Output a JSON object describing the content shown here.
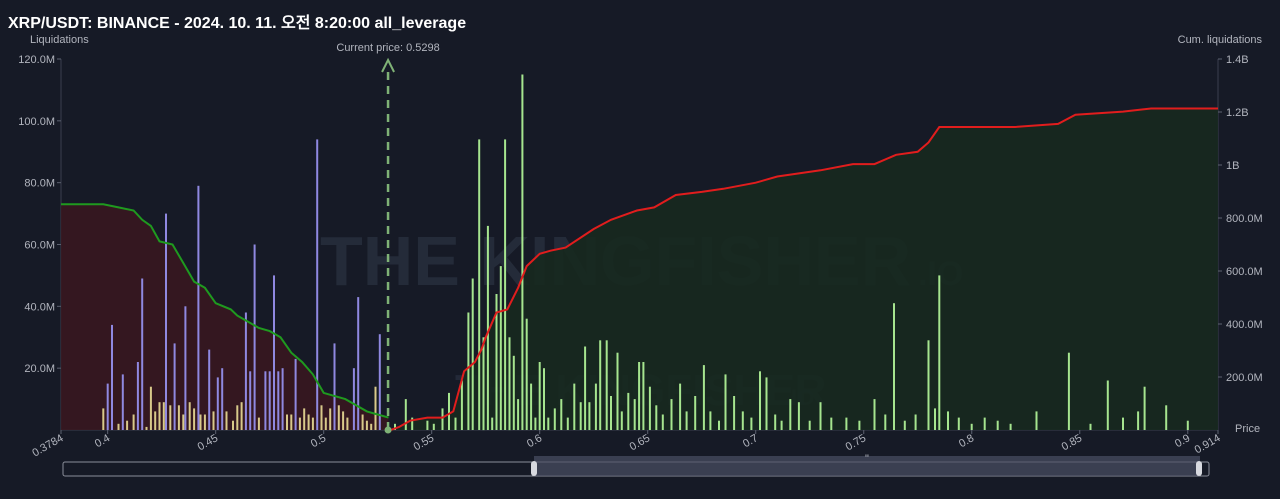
{
  "title": "XRP/USDT: BINANCE - 2024. 10. 11. 오전 8:20:00 all_leverage",
  "watermark": {
    "big": "THE KINGFISHER",
    "big_suffix": ".IO",
    "small": "THE KINGFISHER",
    "small_suffix": ".IO"
  },
  "colors": {
    "background": "#161a26",
    "long_cum_line": "#1f9a1f",
    "long_cum_fill": "#3a1820",
    "short_cum_line": "#e11d1d",
    "short_cum_fill": "#17291f",
    "bar_green": "#a6e58f",
    "bar_purple": "#8f88e0",
    "bar_yellow": "#d8c98a",
    "current_price": "#7fb276"
  },
  "chart_data": {
    "type": "bar",
    "current_price": 0.5298,
    "current_price_label": "Current price: 0.5298",
    "x_axis": {
      "label": "Price",
      "min": 0.3784,
      "max": 0.914,
      "edge_labels": [
        "0.3784",
        "0.914"
      ],
      "ticks": [
        0.4,
        0.45,
        0.5,
        0.55,
        0.6,
        0.65,
        0.7,
        0.75,
        0.8,
        0.85,
        0.9
      ],
      "tick_labels": [
        "0.4",
        "0.45",
        "0.5",
        "0.55",
        "0.6",
        "0.65",
        "0.7",
        "0.75",
        "0.8",
        "0.85",
        "0.9"
      ]
    },
    "y_left": {
      "label": "Liquidations",
      "min": 0,
      "max": 120000000,
      "ticks": [
        20000000,
        40000000,
        60000000,
        80000000,
        100000000,
        120000000
      ],
      "tick_labels": [
        "20.0M",
        "40.0M",
        "60.0M",
        "80.0M",
        "100.0M",
        "120.0M"
      ]
    },
    "y_right": {
      "label": "Cum. liquidations",
      "min": 0,
      "max": 1400000000,
      "ticks": [
        200000000,
        400000000,
        600000000,
        800000000,
        1000000000,
        1200000000,
        1400000000
      ],
      "tick_labels": [
        "200.0M",
        "400.0M",
        "600.0M",
        "800.0M",
        "1B",
        "1.2B",
        "1.4B"
      ]
    },
    "long_bars": [
      [
        0.398,
        7
      ],
      [
        0.4,
        15
      ],
      [
        0.402,
        34
      ],
      [
        0.405,
        2
      ],
      [
        0.407,
        18
      ],
      [
        0.409,
        3
      ],
      [
        0.412,
        5
      ],
      [
        0.414,
        22
      ],
      [
        0.416,
        49
      ],
      [
        0.418,
        1
      ],
      [
        0.42,
        14
      ],
      [
        0.422,
        6
      ],
      [
        0.424,
        9
      ],
      [
        0.426,
        9
      ],
      [
        0.427,
        70
      ],
      [
        0.429,
        8
      ],
      [
        0.431,
        28
      ],
      [
        0.433,
        8
      ],
      [
        0.435,
        5
      ],
      [
        0.436,
        40
      ],
      [
        0.438,
        9
      ],
      [
        0.44,
        7
      ],
      [
        0.442,
        79
      ],
      [
        0.443,
        5
      ],
      [
        0.445,
        5
      ],
      [
        0.447,
        26
      ],
      [
        0.449,
        6
      ],
      [
        0.451,
        17
      ],
      [
        0.453,
        20
      ],
      [
        0.455,
        6
      ],
      [
        0.458,
        3
      ],
      [
        0.46,
        8
      ],
      [
        0.462,
        9
      ],
      [
        0.464,
        38
      ],
      [
        0.466,
        19
      ],
      [
        0.468,
        60
      ],
      [
        0.47,
        4
      ],
      [
        0.473,
        19
      ],
      [
        0.475,
        19
      ],
      [
        0.477,
        50
      ],
      [
        0.479,
        19
      ],
      [
        0.481,
        20
      ],
      [
        0.483,
        5
      ],
      [
        0.485,
        5
      ],
      [
        0.487,
        23
      ],
      [
        0.489,
        4
      ],
      [
        0.491,
        7
      ],
      [
        0.493,
        5
      ],
      [
        0.495,
        4
      ],
      [
        0.497,
        94
      ],
      [
        0.499,
        8
      ],
      [
        0.501,
        4
      ],
      [
        0.503,
        7
      ],
      [
        0.505,
        28
      ],
      [
        0.507,
        8
      ],
      [
        0.509,
        6
      ],
      [
        0.511,
        4
      ],
      [
        0.514,
        20
      ],
      [
        0.516,
        43
      ],
      [
        0.518,
        5
      ],
      [
        0.52,
        3
      ],
      [
        0.522,
        2
      ],
      [
        0.524,
        14
      ],
      [
        0.526,
        31
      ]
    ],
    "long_bar_colors": "purple and yellow",
    "short_bars": [
      [
        0.533,
        2
      ],
      [
        0.538,
        10
      ],
      [
        0.541,
        4
      ],
      [
        0.548,
        3
      ],
      [
        0.551,
        2
      ],
      [
        0.555,
        7
      ],
      [
        0.558,
        12
      ],
      [
        0.561,
        4
      ],
      [
        0.564,
        16
      ],
      [
        0.567,
        38
      ],
      [
        0.569,
        49
      ],
      [
        0.572,
        94
      ],
      [
        0.574,
        30
      ],
      [
        0.576,
        66
      ],
      [
        0.578,
        4
      ],
      [
        0.58,
        44
      ],
      [
        0.582,
        53
      ],
      [
        0.584,
        94
      ],
      [
        0.586,
        30
      ],
      [
        0.588,
        24
      ],
      [
        0.59,
        10
      ],
      [
        0.592,
        115
      ],
      [
        0.594,
        36
      ],
      [
        0.596,
        15
      ],
      [
        0.598,
        4
      ],
      [
        0.6,
        22
      ],
      [
        0.602,
        20
      ],
      [
        0.604,
        4
      ],
      [
        0.607,
        7
      ],
      [
        0.61,
        10
      ],
      [
        0.613,
        4
      ],
      [
        0.616,
        15
      ],
      [
        0.619,
        9
      ],
      [
        0.621,
        27
      ],
      [
        0.623,
        9
      ],
      [
        0.626,
        15
      ],
      [
        0.628,
        29
      ],
      [
        0.631,
        29
      ],
      [
        0.633,
        11
      ],
      [
        0.636,
        25
      ],
      [
        0.638,
        6
      ],
      [
        0.641,
        12
      ],
      [
        0.644,
        10
      ],
      [
        0.646,
        22
      ],
      [
        0.648,
        22
      ],
      [
        0.651,
        14
      ],
      [
        0.654,
        8
      ],
      [
        0.657,
        5
      ],
      [
        0.661,
        10
      ],
      [
        0.665,
        15
      ],
      [
        0.668,
        6
      ],
      [
        0.672,
        11
      ],
      [
        0.676,
        21
      ],
      [
        0.679,
        6
      ],
      [
        0.683,
        3
      ],
      [
        0.686,
        18
      ],
      [
        0.69,
        11
      ],
      [
        0.694,
        6
      ],
      [
        0.698,
        4
      ],
      [
        0.702,
        19
      ],
      [
        0.705,
        17
      ],
      [
        0.709,
        5
      ],
      [
        0.712,
        3
      ],
      [
        0.716,
        10
      ],
      [
        0.72,
        9
      ],
      [
        0.725,
        3
      ],
      [
        0.73,
        9
      ],
      [
        0.735,
        4
      ],
      [
        0.742,
        4
      ],
      [
        0.748,
        3
      ],
      [
        0.755,
        10
      ],
      [
        0.76,
        5
      ],
      [
        0.764,
        41
      ],
      [
        0.769,
        3
      ],
      [
        0.774,
        5
      ],
      [
        0.78,
        29
      ],
      [
        0.783,
        7
      ],
      [
        0.785,
        50
      ],
      [
        0.789,
        6
      ],
      [
        0.794,
        4
      ],
      [
        0.8,
        2
      ],
      [
        0.806,
        4
      ],
      [
        0.812,
        3
      ],
      [
        0.818,
        2
      ],
      [
        0.83,
        6
      ],
      [
        0.845,
        25
      ],
      [
        0.855,
        2
      ],
      [
        0.863,
        16
      ],
      [
        0.87,
        4
      ],
      [
        0.877,
        6
      ],
      [
        0.88,
        14
      ],
      [
        0.89,
        8
      ],
      [
        0.9,
        3
      ]
    ],
    "long_cumulative": [
      [
        0.3784,
        73
      ],
      [
        0.398,
        73
      ],
      [
        0.405,
        72
      ],
      [
        0.412,
        71
      ],
      [
        0.416,
        68
      ],
      [
        0.42,
        66
      ],
      [
        0.424,
        61
      ],
      [
        0.43,
        60
      ],
      [
        0.435,
        54
      ],
      [
        0.44,
        48
      ],
      [
        0.445,
        46
      ],
      [
        0.45,
        41
      ],
      [
        0.457,
        39
      ],
      [
        0.46,
        37
      ],
      [
        0.465,
        35
      ],
      [
        0.47,
        33
      ],
      [
        0.475,
        32
      ],
      [
        0.48,
        30
      ],
      [
        0.485,
        25
      ],
      [
        0.49,
        22
      ],
      [
        0.495,
        18
      ],
      [
        0.5,
        12
      ],
      [
        0.51,
        10
      ],
      [
        0.515,
        8
      ],
      [
        0.52,
        6
      ],
      [
        0.525,
        5
      ],
      [
        0.53,
        4
      ]
    ],
    "short_cumulative": [
      [
        0.531,
        0
      ],
      [
        0.535,
        1
      ],
      [
        0.54,
        3
      ],
      [
        0.548,
        4
      ],
      [
        0.555,
        4
      ],
      [
        0.56,
        6
      ],
      [
        0.565,
        19
      ],
      [
        0.57,
        22
      ],
      [
        0.573,
        26
      ],
      [
        0.575,
        30
      ],
      [
        0.58,
        38
      ],
      [
        0.585,
        39
      ],
      [
        0.59,
        46
      ],
      [
        0.594,
        53
      ],
      [
        0.6,
        57
      ],
      [
        0.605,
        58
      ],
      [
        0.612,
        59
      ],
      [
        0.625,
        65
      ],
      [
        0.633,
        68
      ],
      [
        0.645,
        71
      ],
      [
        0.653,
        72
      ],
      [
        0.663,
        76
      ],
      [
        0.675,
        77
      ],
      [
        0.685,
        78
      ],
      [
        0.7,
        80
      ],
      [
        0.71,
        82
      ],
      [
        0.72,
        83
      ],
      [
        0.73,
        84
      ],
      [
        0.745,
        86
      ],
      [
        0.755,
        86
      ],
      [
        0.765,
        89
      ],
      [
        0.775,
        90
      ],
      [
        0.78,
        93
      ],
      [
        0.785,
        98
      ],
      [
        0.795,
        98
      ],
      [
        0.82,
        98
      ],
      [
        0.84,
        99
      ],
      [
        0.848,
        102
      ],
      [
        0.87,
        103
      ],
      [
        0.883,
        104
      ],
      [
        0.914,
        104
      ]
    ],
    "cumulative_units": "millions, left-axis scale"
  },
  "scrollbar": {
    "handle_label": "\""
  }
}
